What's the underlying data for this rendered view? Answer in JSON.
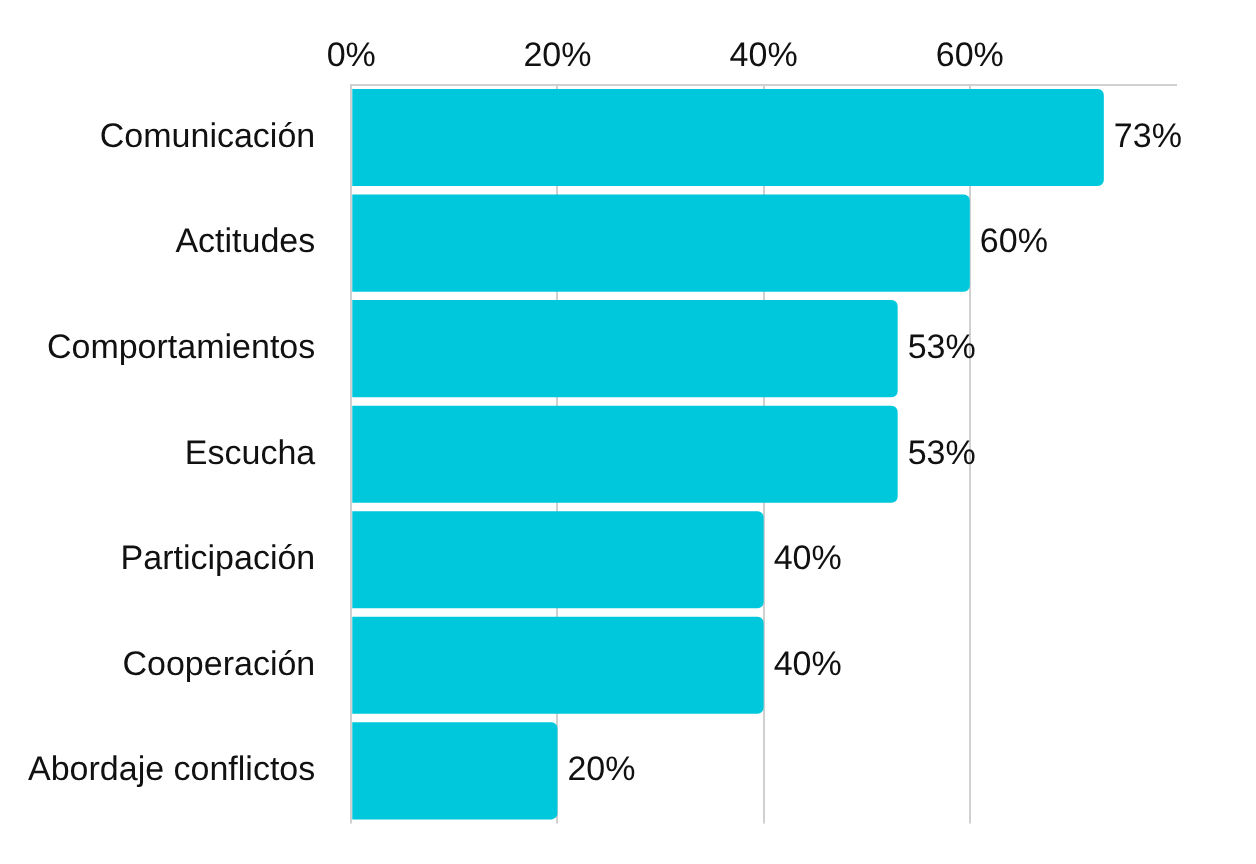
{
  "chart_data": {
    "type": "bar",
    "orientation": "horizontal",
    "categories": [
      "Comunicación",
      "Actitudes",
      "Comportamientos",
      "Escucha",
      "Participación",
      "Cooperación",
      "Abordaje conflictos"
    ],
    "values": [
      73,
      60,
      53,
      53,
      40,
      40,
      20
    ],
    "value_labels": [
      "73%",
      "60%",
      "53%",
      "53%",
      "40%",
      "40%",
      "20%"
    ],
    "color": "#00c8dc",
    "xticks": [
      {
        "value": 0,
        "label": "0%"
      },
      {
        "value": 20,
        "label": "20%"
      },
      {
        "value": 40,
        "label": "40%"
      },
      {
        "value": 60,
        "label": "60%"
      }
    ],
    "xlim": [
      0,
      80
    ],
    "grid": "x",
    "legend": false
  }
}
